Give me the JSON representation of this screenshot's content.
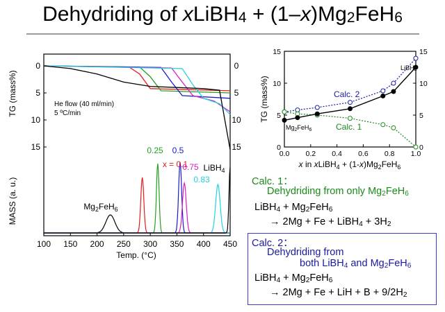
{
  "title": {
    "pre": "Dehydriding of ",
    "x": "x",
    "mid": "LiBH",
    "sub4": "4",
    "rest": " + (1–",
    "x2": "x",
    "mg": ")Mg",
    "sub2": "2",
    "fe": "FeH",
    "sub6": "6"
  },
  "colors": {
    "x0": "#000000",
    "x01": "#e41a1c",
    "x025": "#22a022",
    "x05": "#1a1acc",
    "x075": "#d61ec8",
    "x083": "#22d0e0",
    "x1": "#000000",
    "calc1": "#1a8a1a",
    "calc2": "#1a1aa0"
  },
  "chart_data": [
    {
      "type": "line",
      "panel": "TG (left, upper)",
      "ylabel": "TG (mass%)",
      "yticks": [
        "0",
        "5",
        "10",
        "15"
      ],
      "yticks_right": [
        "0",
        "5",
        "10",
        "15"
      ],
      "annotation": [
        "He flow (40 ml/min)",
        "5 ºC/min"
      ],
      "series": [
        {
          "color": "#e41a1c",
          "x": [
            100,
            260,
            280,
            300,
            450
          ],
          "y": [
            0,
            0.2,
            1.5,
            4.2,
            4.6
          ]
        },
        {
          "color": "#22a022",
          "x": [
            100,
            280,
            300,
            320,
            450
          ],
          "y": [
            0,
            0.2,
            2.0,
            4.6,
            5.0
          ]
        },
        {
          "color": "#1a1acc",
          "x": [
            100,
            320,
            340,
            360,
            450
          ],
          "y": [
            0,
            0.3,
            3.0,
            5.5,
            6.0
          ]
        },
        {
          "color": "#d61ec8",
          "x": [
            100,
            340,
            360,
            380,
            420,
            450
          ],
          "y": [
            0,
            0.4,
            3.0,
            5.5,
            6.5,
            8.5
          ]
        },
        {
          "color": "#22d0e0",
          "x": [
            100,
            360,
            380,
            400,
            430,
            450
          ],
          "y": [
            0,
            0.5,
            3.5,
            6.0,
            7.0,
            9.0
          ]
        },
        {
          "color": "#000000",
          "x": [
            100,
            150,
            200,
            250,
            300,
            350,
            400,
            430,
            450
          ],
          "y": [
            0,
            0.5,
            1.5,
            3.0,
            3.8,
            4.0,
            4.2,
            4.5,
            15.5
          ]
        }
      ]
    },
    {
      "type": "line",
      "panel": "MASS (left, lower)",
      "xlabel": "Temp. (°C)",
      "ylabel": "MASS (a. u.)",
      "xticks": [
        "100",
        "150",
        "200",
        "250",
        "300",
        "350",
        "400",
        "450"
      ],
      "labels": {
        "mg": "Mg",
        "sub2": "2",
        "fe": "FeH",
        "sub6": "6",
        "x01": "x = 0.1",
        "x025": "0.25",
        "x05": "0.5",
        "x075": "0.75",
        "x083": "0.83",
        "li": "LiBH",
        "sub4": "4"
      },
      "peaks": [
        {
          "label": "Mg2FeH6",
          "color": "#000000",
          "peak_temp": 225
        },
        {
          "label": "x = 0.1",
          "color": "#e41a1c",
          "peak_temp": 285
        },
        {
          "label": "0.25",
          "color": "#22a022",
          "peak_temp": 314
        },
        {
          "label": "0.5",
          "color": "#1a1acc",
          "peak_temp": 356
        },
        {
          "label": "0.75",
          "color": "#d61ec8",
          "peak_temp": 364
        },
        {
          "label": "0.83",
          "color": "#22d0e0",
          "peak_temp": 427
        },
        {
          "label": "LiBH4",
          "color": "#000000",
          "peak_temp": 450
        }
      ]
    },
    {
      "type": "line",
      "panel": "inset (right)",
      "ylabel": "TG (mass%)",
      "xlabel_parts": {
        "x": "x",
        "in": " in ",
        "x2": "x",
        "li": "LiBH",
        "sub4": "4",
        "rest": " + (1-",
        "x3": "x",
        "mg": ")Mg",
        "sub2": "2",
        "fe": "FeH",
        "sub6": "6"
      },
      "xlim": [
        0,
        1
      ],
      "ylim": [
        0,
        15
      ],
      "xticks": [
        "0.0",
        "0.2",
        "0.4",
        "0.6",
        "0.8",
        "1.0"
      ],
      "yticks": [
        "0",
        "5",
        "10",
        "15"
      ],
      "left_label": {
        "mg": "Mg",
        "sub2": "2",
        "fe": "FeH",
        "sub6": "6"
      },
      "right_label": {
        "li": "LiBH",
        "sub4": "4"
      },
      "series": [
        {
          "name": "Calc. 2",
          "style": "dotted-open",
          "color": "#1a1aa0",
          "x": [
            0.0,
            0.1,
            0.25,
            0.5,
            0.75,
            0.83,
            1.0
          ],
          "y": [
            5.5,
            5.8,
            6.2,
            7.0,
            8.8,
            10.0,
            13.9
          ]
        },
        {
          "name": "Calc. 1",
          "style": "dotted-open",
          "color": "#1a8a1a",
          "x": [
            0.0,
            0.1,
            0.25,
            0.5,
            0.75,
            0.83,
            1.0
          ],
          "y": [
            5.5,
            5.2,
            5.0,
            4.5,
            3.5,
            3.0,
            0.0
          ]
        },
        {
          "name": "",
          "style": "solid-filled",
          "color": "#000000",
          "x": [
            0.0,
            0.1,
            0.25,
            0.5,
            0.75,
            0.83,
            1.0
          ],
          "y": [
            4.2,
            4.6,
            5.2,
            6.0,
            8.0,
            8.7,
            12.5
          ]
        }
      ]
    }
  ],
  "calc1": {
    "head": "Calc. 1：",
    "line1a": "Dehydriding from only Mg",
    "line1s": "2",
    "line1b": "FeH",
    "line1t": "6",
    "line2a": "LiBH",
    "line2s": "4",
    "line2b": " + Mg",
    "line2t": "2",
    "line2c": "FeH",
    "line2u": "6",
    "line3a": "→ 2Mg + Fe + LiBH",
    "line3s": "4",
    "line3b": " + 3H",
    "line3t": "2"
  },
  "calc2": {
    "head": "Calc. 2：",
    "line1": "Dehydriding from",
    "line2a": "both LiBH",
    "line2s": "4",
    "line2b": " and Mg",
    "line2t": "2",
    "line2c": "FeH",
    "line2u": "6",
    "line3a": "LiBH",
    "line3s": "4",
    "line3b": " + Mg",
    "line3t": "2",
    "line3c": "FeH",
    "line3u": "6",
    "line4a": "→ 2Mg + Fe + LiH + B + 9/2H",
    "line4s": "2"
  }
}
